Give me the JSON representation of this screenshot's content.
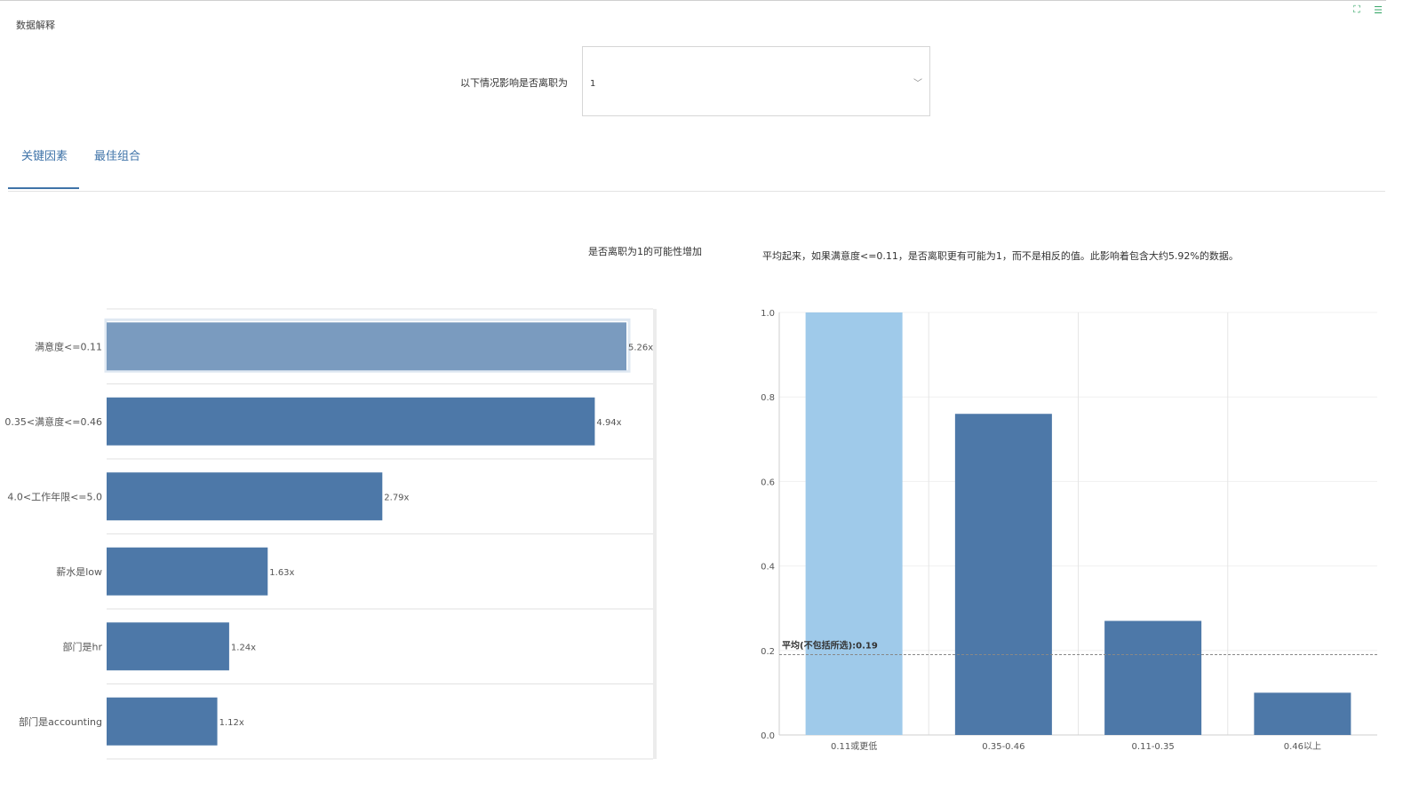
{
  "page": {
    "section_title": "数据解释"
  },
  "toolbar": {
    "expand_icon": "expand-icon",
    "list_icon": "list-icon"
  },
  "filter": {
    "label": "以下情况影响是否离职为",
    "value": "1"
  },
  "tabs": [
    {
      "label": "关键因素",
      "active": true
    },
    {
      "label": "最佳组合",
      "active": false
    }
  ],
  "left_panel": {
    "heading": "是否离职为1的可能性增加"
  },
  "right_panel": {
    "heading": "平均起来，如果满意度<=0.11，是否离职更有可能为1，而不是相反的值。此影响着包含大约5.92%的数据。"
  },
  "colors": {
    "accent": "#3f73a8",
    "bar": "#4d78a8",
    "bar_selected": "#7a9bbf",
    "bar_highlight": "#9fcaea"
  },
  "chart_data": [
    {
      "type": "bar",
      "orientation": "horizontal",
      "categories": [
        "满意度<=0.11",
        "0.35<满意度<=0.46",
        "4.0<工作年限<=5.0",
        "薪水是low",
        "部门是hr",
        "部门是accounting"
      ],
      "values": [
        5.26,
        4.94,
        2.79,
        1.63,
        1.24,
        1.12
      ],
      "value_labels": [
        "5.26x",
        "4.94x",
        "2.79x",
        "1.63x",
        "1.24x",
        "1.12x"
      ],
      "selected_index": 0
    },
    {
      "type": "bar",
      "categories": [
        "0.11或更低",
        "0.35-0.46",
        "0.11-0.35",
        "0.46以上"
      ],
      "values": [
        1.0,
        0.76,
        0.27,
        0.1
      ],
      "ylim": [
        0,
        1.0
      ],
      "y_ticks": [
        "0.0",
        "0.2",
        "0.4",
        "0.6",
        "0.8",
        "1.0"
      ],
      "highlight_index": 0,
      "reference_line": {
        "label": "平均(不包括所选):0.19",
        "value": 0.19
      },
      "grid": true
    }
  ]
}
